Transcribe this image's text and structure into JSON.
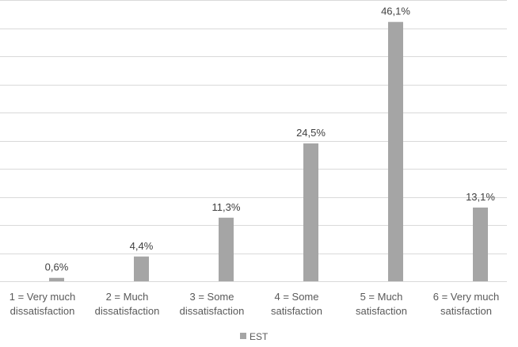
{
  "chart_data": {
    "type": "bar",
    "categories": [
      [
        "1 = Very much",
        "dissatisfaction"
      ],
      [
        "2 = Much",
        "dissatisfaction"
      ],
      [
        "3 = Some",
        "dissatisfaction"
      ],
      [
        "4 = Some",
        "satisfaction"
      ],
      [
        "5 = Much",
        "satisfaction"
      ],
      [
        "6 = Very much",
        "satisfaction"
      ]
    ],
    "series": [
      {
        "name": "EST",
        "values": [
          0.6,
          4.4,
          11.3,
          24.5,
          46.1,
          13.1
        ],
        "labels": [
          "0,6%",
          "4,4%",
          "11,3%",
          "24,5%",
          "46,1%",
          "13,1%"
        ],
        "color": "#a5a5a5"
      }
    ],
    "ylim": [
      0,
      50
    ],
    "grid": true,
    "gridline_color": "#d9d9d9",
    "legend": "bottom-center"
  }
}
